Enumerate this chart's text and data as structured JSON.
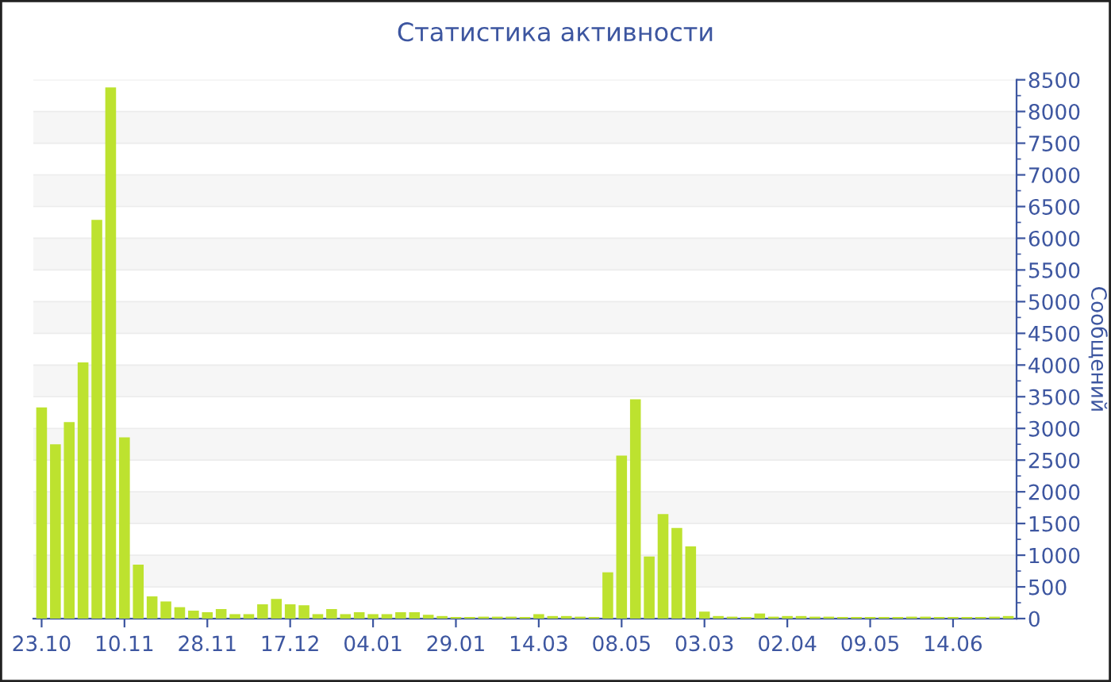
{
  "chart_data": {
    "type": "bar",
    "title": "Статистика активности",
    "ylabel": "Сообщений",
    "categories": [
      "23.10",
      null,
      null,
      null,
      null,
      null,
      "10.11",
      null,
      null,
      null,
      null,
      null,
      "28.11",
      null,
      null,
      null,
      null,
      null,
      "17.12",
      null,
      null,
      null,
      null,
      null,
      "04.01",
      null,
      null,
      null,
      null,
      null,
      "29.01",
      null,
      null,
      null,
      null,
      null,
      "14.03",
      null,
      null,
      null,
      null,
      null,
      "08.05",
      null,
      null,
      null,
      null,
      null,
      "03.03",
      null,
      null,
      null,
      null,
      null,
      "02.04",
      null,
      null,
      null,
      null,
      null,
      "09.05",
      null,
      null,
      null,
      null,
      null,
      "14.06",
      null,
      null,
      null,
      null
    ],
    "series": [
      {
        "color": "#bde22f",
        "values": [
          3330,
          2750,
          3100,
          4040,
          6290,
          8380,
          2860,
          850,
          350,
          270,
          180,
          125,
          100,
          150,
          70,
          70,
          225,
          310,
          225,
          210,
          70,
          150,
          70,
          100,
          70,
          70,
          100,
          100,
          60,
          40,
          25,
          25,
          30,
          30,
          30,
          25,
          70,
          40,
          40,
          30,
          25,
          730,
          2570,
          3460,
          980,
          1650,
          1430,
          1140,
          110,
          40,
          30,
          25,
          80,
          30,
          40,
          40,
          30,
          30,
          25,
          25,
          25,
          25,
          25,
          30,
          30,
          25,
          25,
          25,
          25,
          30,
          40
        ]
      }
    ],
    "ylim": [
      0,
      8500
    ],
    "yticks": [
      0,
      500,
      1000,
      1500,
      2000,
      2500,
      3000,
      3500,
      4000,
      4500,
      5000,
      5500,
      6000,
      6500,
      7000,
      7500,
      8000,
      8500
    ],
    "grid": "y"
  }
}
